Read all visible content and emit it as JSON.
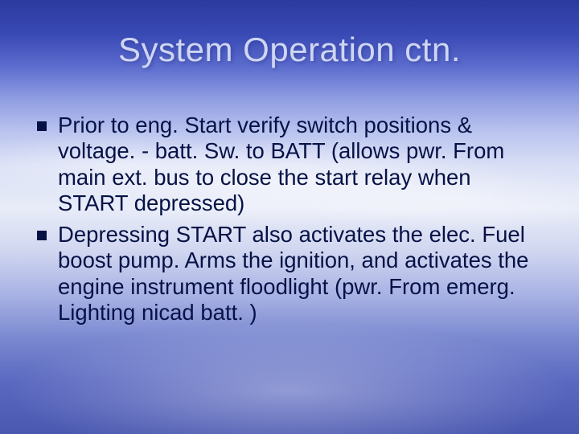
{
  "slide": {
    "title": "System Operation ctn.",
    "title_color": "#cfd6f2",
    "title_fontsize": 42,
    "body_fontsize": 27.5,
    "body_color": "#061246",
    "bullet_marker_color": "#061246",
    "background_gradient": [
      "#2a3a9e",
      "#3a4ab5",
      "#5a6acc",
      "#8a98e0",
      "#b8c2ee",
      "#d8def5",
      "#e8ecf8",
      "#d0d6f0",
      "#a8b2e4",
      "#7a88d0",
      "#5a68c0",
      "#4a58b0"
    ],
    "bullets": [
      "Prior to eng. Start verify switch positions & voltage. - batt. Sw. to BATT (allows pwr. From main ext. bus to close the start relay when START depressed)",
      "Depressing START also activates the elec. Fuel boost pump. Arms the ignition, and activates the engine instrument floodlight (pwr. From emerg. Lighting nicad batt. )"
    ]
  }
}
